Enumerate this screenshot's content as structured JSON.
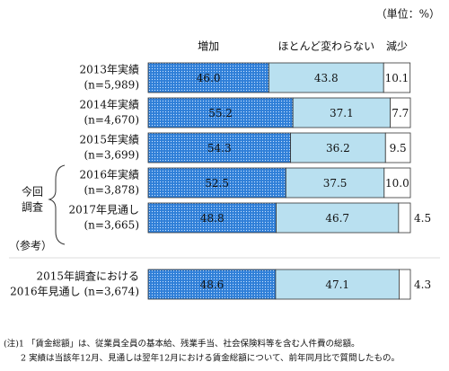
{
  "chart_data": {
    "type": "stacked-bar-horizontal",
    "unit_label": "（単位：%）",
    "categories": [
      [
        "2013年実績",
        "(n=5,989)"
      ],
      [
        "2014年実績",
        "(n=4,670)"
      ],
      [
        "2015年実績",
        "(n=3,699)"
      ],
      [
        "2016年実績",
        "(n=3,878)"
      ],
      [
        "2017年見通し",
        "(n=3,665)"
      ],
      [
        "2015年調査における",
        "2016年見通し (n=3,674)"
      ]
    ],
    "series": [
      {
        "name": "増加",
        "color": "#2f7fd8",
        "values": [
          46.0,
          55.2,
          54.3,
          52.5,
          48.8,
          48.6
        ],
        "value_labels": [
          "46.0",
          "55.2",
          "54.3",
          "52.5",
          "48.8",
          "48.6"
        ]
      },
      {
        "name": "ほとんど変わらない",
        "color": "#b9e0f0",
        "values": [
          43.8,
          37.1,
          36.2,
          37.5,
          46.7,
          47.1
        ],
        "value_labels": [
          "43.8",
          "37.1",
          "36.2",
          "37.5",
          "46.7",
          "47.1"
        ]
      },
      {
        "name": "減少",
        "color": "#ffffff",
        "values": [
          10.1,
          7.7,
          9.5,
          10.0,
          4.5,
          4.3
        ],
        "value_labels": [
          "10.1",
          "7.7",
          "9.5",
          "10.0",
          "4.5",
          "4.3"
        ]
      }
    ],
    "xlim": [
      0,
      100
    ],
    "group_label": [
      "今回",
      "調査"
    ],
    "reference_label": "（参考）",
    "notes": [
      "(注)1 「賃金総額」は、従業員全員の基本給、残業手当、社会保険料等を含む人件費の総額。",
      "　　2 実績は当該年12月、見通しは翌年12月における賃金総額について、前年同月比で質問したもの。"
    ]
  }
}
